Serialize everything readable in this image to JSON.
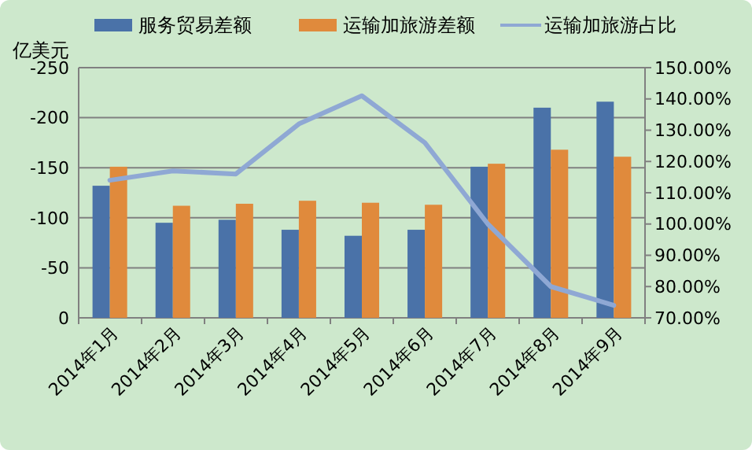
{
  "chart_data": {
    "type": "bar",
    "ylabel": "亿美元",
    "categories": [
      "2014年1月",
      "2014年2月",
      "2014年3月",
      "2014年4月",
      "2014年5月",
      "2014年6月",
      "2014年7月",
      "2014年8月",
      "2014年9月"
    ],
    "series": [
      {
        "name": "服务贸易差额",
        "color": "#4a72a8",
        "values": [
          -132,
          -95,
          -98,
          -88,
          -82,
          -88,
          -151,
          -210,
          -216
        ]
      },
      {
        "name": "运输加旅游差额",
        "color": "#e08a3c",
        "values": [
          -151,
          -112,
          -114,
          -117,
          -115,
          -113,
          -154,
          -168,
          -161
        ]
      },
      {
        "name": "运输加旅游占比",
        "type": "line",
        "axis": "y2",
        "color": "#8fa8d4",
        "values": [
          114,
          117,
          116,
          132,
          141,
          126,
          100,
          80,
          74
        ]
      }
    ],
    "ylim": [
      0,
      -250
    ],
    "yticks": [
      0,
      -50,
      -100,
      -150,
      -200,
      -250
    ],
    "y2lim": [
      70,
      150
    ],
    "y2ticks": [
      {
        "value": 70,
        "label": "70.00%"
      },
      {
        "value": 80,
        "label": "80.00%"
      },
      {
        "value": 90,
        "label": "90.00%"
      },
      {
        "value": 100,
        "label": "100.00%"
      },
      {
        "value": 110,
        "label": "110.00%"
      },
      {
        "value": 120,
        "label": "120.00%"
      },
      {
        "value": 130,
        "label": "130.00%"
      },
      {
        "value": 140,
        "label": "140.00%"
      },
      {
        "value": 150,
        "label": "150.00%"
      }
    ],
    "grid": "y",
    "legend": "top"
  }
}
